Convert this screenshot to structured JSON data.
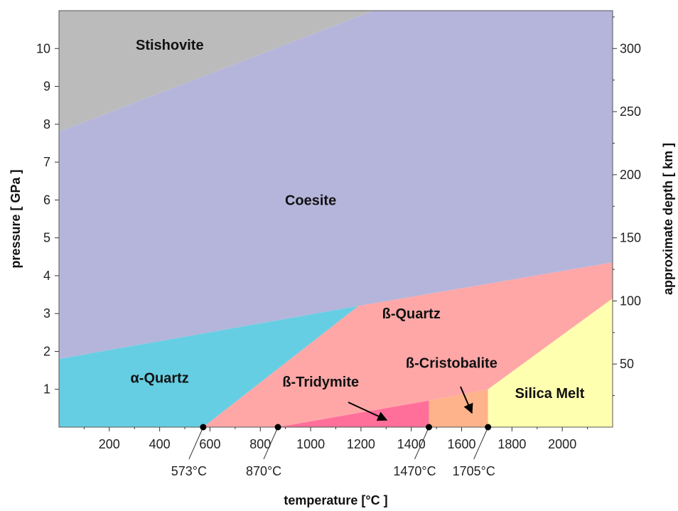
{
  "chart_data": {
    "type": "area",
    "xlabel": "temperature [°C ]",
    "ylabel": "pressure [ GPa ]",
    "y2label": "approximate depth [ km ]",
    "xlim": [
      0,
      2200
    ],
    "ylim": [
      0,
      11
    ],
    "y2lim": [
      0,
      330
    ],
    "x_ticks": [
      200,
      400,
      600,
      800,
      1000,
      1200,
      1400,
      1600,
      1800,
      2000
    ],
    "y_ticks": [
      1,
      2,
      3,
      4,
      5,
      6,
      7,
      8,
      9,
      10
    ],
    "y2_ticks": [
      50,
      100,
      150,
      200,
      250,
      300
    ],
    "regions": [
      {
        "name": "Stishovite",
        "color": "#bbbbbb",
        "polygon": [
          [
            0,
            7.8
          ],
          [
            1250,
            11
          ],
          [
            0,
            11
          ]
        ],
        "label_at": [
          440,
          10.1
        ]
      },
      {
        "name": "Coesite",
        "color": "#b5b5dc",
        "polygon": [
          [
            0,
            1.8
          ],
          [
            1190,
            3.2
          ],
          [
            2200,
            4.35
          ],
          [
            2200,
            11
          ],
          [
            1250,
            11
          ],
          [
            0,
            7.8
          ]
        ],
        "label_at": [
          1000,
          6.0
        ]
      },
      {
        "name": "α-Quartz",
        "color": "#66cee3",
        "polygon": [
          [
            0,
            0
          ],
          [
            573,
            0
          ],
          [
            1190,
            3.2
          ],
          [
            0,
            1.8
          ]
        ],
        "label_at": [
          400,
          1.3
        ]
      },
      {
        "name": "ß-Quartz",
        "color": "#ffa7a7",
        "polygon": [
          [
            573,
            0
          ],
          [
            870,
            0
          ],
          [
            1470,
            0.7
          ],
          [
            1705,
            1.0
          ],
          [
            2200,
            3.4
          ],
          [
            2200,
            4.35
          ],
          [
            1190,
            3.2
          ]
        ],
        "label_at": [
          1400,
          3.0
        ]
      },
      {
        "name": "ß-Tridymite",
        "color": "#ff6f99",
        "polygon": [
          [
            870,
            0
          ],
          [
            1470,
            0
          ],
          [
            1470,
            0.7
          ]
        ],
        "label_at": [
          1040,
          1.2
        ]
      },
      {
        "name": "ß-Cristobalite",
        "color": "#ffb38a",
        "polygon": [
          [
            1470,
            0
          ],
          [
            1705,
            0
          ],
          [
            1705,
            1.0
          ],
          [
            1470,
            0.7
          ]
        ],
        "label_at": [
          1560,
          1.7
        ]
      },
      {
        "name": "Silica Melt",
        "color": "#ffffb0",
        "polygon": [
          [
            1705,
            0
          ],
          [
            2200,
            0
          ],
          [
            2200,
            3.4
          ],
          [
            1705,
            1.0
          ]
        ],
        "label_at": [
          1950,
          0.9
        ]
      }
    ],
    "transition_points": [
      {
        "label": "573°C",
        "x": 573
      },
      {
        "label": "870°C",
        "x": 870
      },
      {
        "label": "1470°C",
        "x": 1470
      },
      {
        "label": "1705°C",
        "x": 1705
      }
    ]
  }
}
